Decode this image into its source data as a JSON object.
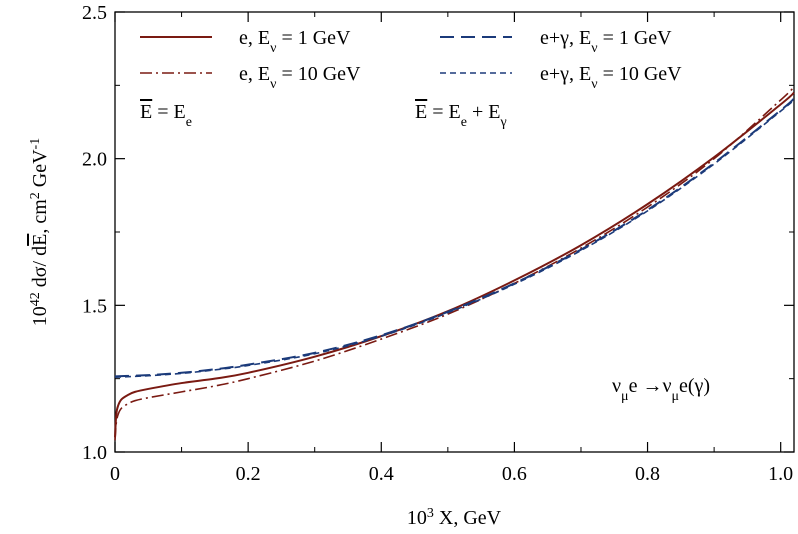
{
  "chart_data": {
    "type": "line",
    "xlabel": {
      "base": "10",
      "sup": "3",
      "rest": " X, GeV"
    },
    "ylabel": {
      "pre": "10",
      "sup": "42",
      "mid": " dσ/ dE, cm",
      "sup2": "2",
      "mid2": " GeV",
      "sup3": "-1",
      "overline": "E"
    },
    "xlim": [
      0,
      1.02
    ],
    "ylim": [
      1.0,
      2.5
    ],
    "x_ticks": [
      "0",
      "0.2",
      "0.4",
      "0.6",
      "0.8",
      "1.0"
    ],
    "y_ticks": [
      "1.0",
      "1.5",
      "2.0",
      "2.5"
    ],
    "series": [
      {
        "name": "e, E_ν = 1 GeV",
        "label": {
          "main": "e, E",
          "sub": "ν",
          "rest": " = 1 GeV"
        },
        "color": "#7a1a12",
        "style": "solid",
        "x": [
          0.0,
          0.002,
          0.005,
          0.01,
          0.02,
          0.03,
          0.05,
          0.1,
          0.15,
          0.2,
          0.3,
          0.4,
          0.5,
          0.6,
          0.7,
          0.8,
          0.9,
          1.0,
          1.02
        ],
        "y": [
          1.05,
          1.13,
          1.16,
          1.18,
          1.195,
          1.205,
          1.215,
          1.235,
          1.25,
          1.27,
          1.325,
          1.395,
          1.48,
          1.585,
          1.705,
          1.845,
          2.005,
          2.185,
          2.225
        ]
      },
      {
        "name": "e, E_ν = 10 GeV",
        "label": {
          "main": "e, E",
          "sub": "ν",
          "rest": " = 10 GeV"
        },
        "color": "#7a1a12",
        "style": "dashdot",
        "x": [
          0.0,
          0.002,
          0.005,
          0.01,
          0.02,
          0.03,
          0.05,
          0.1,
          0.15,
          0.2,
          0.3,
          0.4,
          0.5,
          0.6,
          0.7,
          0.8,
          0.9,
          1.0,
          1.02
        ],
        "y": [
          1.04,
          1.1,
          1.13,
          1.15,
          1.165,
          1.175,
          1.185,
          1.205,
          1.225,
          1.25,
          1.31,
          1.385,
          1.47,
          1.575,
          1.695,
          1.835,
          2.0,
          2.2,
          2.245
        ]
      },
      {
        "name": "e+γ, E_ν = 1 GeV",
        "label": {
          "main": "e+γ, E",
          "sub": "ν",
          "rest": " = 1 GeV"
        },
        "color": "#1b3a7a",
        "style": "longdash",
        "x": [
          0.0,
          0.05,
          0.1,
          0.15,
          0.2,
          0.3,
          0.4,
          0.5,
          0.6,
          0.7,
          0.8,
          0.9,
          1.0,
          1.02
        ],
        "y": [
          1.258,
          1.262,
          1.27,
          1.282,
          1.298,
          1.338,
          1.398,
          1.478,
          1.575,
          1.69,
          1.825,
          1.985,
          2.165,
          2.205
        ]
      },
      {
        "name": "e+γ, E_ν = 10 GeV",
        "label": {
          "main": "e+γ, E",
          "sub": "ν",
          "rest": " = 10 GeV"
        },
        "color": "#1b3a7a",
        "style": "shortdash",
        "x": [
          0.0,
          0.05,
          0.1,
          0.15,
          0.2,
          0.3,
          0.4,
          0.5,
          0.6,
          0.7,
          0.8,
          0.9,
          1.0,
          1.02
        ],
        "y": [
          1.255,
          1.26,
          1.268,
          1.28,
          1.295,
          1.335,
          1.395,
          1.475,
          1.572,
          1.687,
          1.822,
          1.982,
          2.162,
          2.2
        ]
      }
    ],
    "annotations": {
      "ebar_e": {
        "lhs": "E",
        "eq": " = E",
        "sub": "e"
      },
      "ebar_eg": {
        "lhs": "E",
        "eq": " = E",
        "sub1": "e",
        "plus": " + E",
        "sub2": "γ"
      },
      "reaction": {
        "nu": "ν",
        "mu": "μ",
        "mid": "e →ν",
        "mu2": "μ",
        "end": "e(γ)"
      }
    },
    "grid": false,
    "legend_position": "top"
  }
}
